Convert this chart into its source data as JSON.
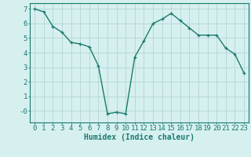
{
  "x": [
    0,
    1,
    2,
    3,
    4,
    5,
    6,
    7,
    8,
    9,
    10,
    11,
    12,
    13,
    14,
    15,
    16,
    17,
    18,
    19,
    20,
    21,
    22,
    23
  ],
  "y": [
    7.0,
    6.8,
    5.8,
    5.4,
    4.7,
    4.6,
    4.4,
    3.1,
    -0.2,
    -0.1,
    -0.2,
    3.7,
    4.8,
    6.0,
    6.3,
    6.7,
    6.2,
    5.7,
    5.2,
    5.2,
    5.2,
    4.3,
    3.9,
    2.6
  ],
  "line_color": "#1a7a6e",
  "marker": "+",
  "bg_color": "#d6f0ef",
  "grid_color": "#b8d8d8",
  "xlabel": "Humidex (Indice chaleur)",
  "xlabel_fontsize": 7,
  "tick_fontsize": 6.5,
  "ylim": [
    -0.8,
    7.4
  ],
  "xlim": [
    -0.5,
    23.5
  ],
  "yticks": [
    0,
    1,
    2,
    3,
    4,
    5,
    6,
    7
  ],
  "ytick_labels": [
    "-0",
    "1",
    "2",
    "3",
    "4",
    "5",
    "6",
    "7"
  ],
  "xticks": [
    0,
    1,
    2,
    3,
    4,
    5,
    6,
    7,
    8,
    9,
    10,
    11,
    12,
    13,
    14,
    15,
    16,
    17,
    18,
    19,
    20,
    21,
    22,
    23
  ]
}
